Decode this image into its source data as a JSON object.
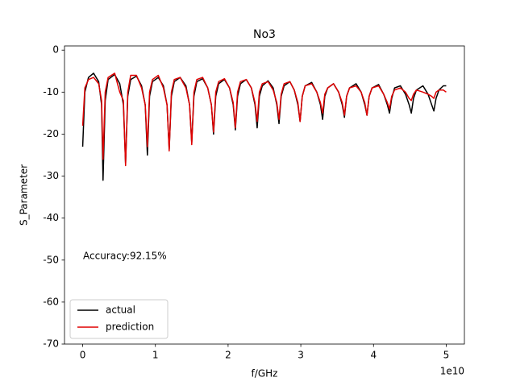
{
  "chart_data": {
    "type": "line",
    "title": "No3",
    "xlabel": "f/GHz",
    "ylabel": "S_Parameter",
    "x_offset_label": "1e10",
    "annotation": "Accuracy:92.15%",
    "x": [
      0,
      0.03,
      0.08,
      0.15,
      0.22,
      0.26,
      0.28,
      0.31,
      0.35,
      0.44,
      0.51,
      0.56,
      0.59,
      0.62,
      0.66,
      0.74,
      0.81,
      0.86,
      0.89,
      0.92,
      0.96,
      1.04,
      1.11,
      1.16,
      1.19,
      1.22,
      1.26,
      1.34,
      1.42,
      1.47,
      1.5,
      1.53,
      1.57,
      1.65,
      1.72,
      1.77,
      1.8,
      1.83,
      1.87,
      1.95,
      2.02,
      2.07,
      2.1,
      2.13,
      2.17,
      2.25,
      2.32,
      2.37,
      2.4,
      2.43,
      2.47,
      2.55,
      2.62,
      2.67,
      2.7,
      2.73,
      2.77,
      2.85,
      2.91,
      2.96,
      2.99,
      3.02,
      3.06,
      3.15,
      3.22,
      3.27,
      3.3,
      3.33,
      3.37,
      3.45,
      3.52,
      3.57,
      3.6,
      3.63,
      3.67,
      3.76,
      3.83,
      3.88,
      3.91,
      3.94,
      3.98,
      4.07,
      4.14,
      4.19,
      4.22,
      4.25,
      4.29,
      4.37,
      4.44,
      4.49,
      4.52,
      4.55,
      4.59,
      4.68,
      4.75,
      4.8,
      4.83,
      4.86,
      4.9,
      4.96,
      5.0
    ],
    "series": [
      {
        "name": "actual",
        "color": "#000000",
        "values": [
          -23,
          -10,
          -6.5,
          -5.5,
          -7.5,
          -13,
          -31,
          -12,
          -7,
          -5.8,
          -8,
          -13,
          -27,
          -11,
          -7,
          -6.2,
          -8.5,
          -13,
          -25,
          -11,
          -7.5,
          -6.5,
          -8.5,
          -13,
          -23.5,
          -11,
          -7.5,
          -6.5,
          -8.5,
          -13,
          -22,
          -11,
          -7.5,
          -6.8,
          -9,
          -13,
          -20,
          -11,
          -8,
          -7,
          -9,
          -13,
          -19,
          -11,
          -8,
          -7,
          -9,
          -13,
          -18.5,
          -11,
          -8.5,
          -7.3,
          -9,
          -13,
          -17.5,
          -11,
          -8.5,
          -7.5,
          -9.5,
          -13,
          -17,
          -11,
          -8.5,
          -7.7,
          -10,
          -13,
          -16.5,
          -11,
          -9,
          -8,
          -10,
          -13,
          -16,
          -11,
          -9,
          -8,
          -10,
          -13,
          -15.5,
          -11,
          -9,
          -8.2,
          -10.5,
          -13,
          -15,
          -11.5,
          -9,
          -8.5,
          -10.5,
          -13,
          -15,
          -11.5,
          -9.5,
          -8.5,
          -10.5,
          -13,
          -14.5,
          -11.5,
          -9.5,
          -8.5,
          -8.5
        ]
      },
      {
        "name": "prediction",
        "color": "#e00000",
        "values": [
          -18,
          -9,
          -7,
          -6.5,
          -8,
          -12,
          -26,
          -10,
          -6.5,
          -5.5,
          -10,
          -12,
          -27.5,
          -10,
          -6,
          -6,
          -9,
          -13,
          -23,
          -10,
          -7,
          -6,
          -9,
          -13,
          -24,
          -10,
          -7,
          -6.5,
          -9,
          -13,
          -22.5,
          -10,
          -7,
          -6.5,
          -9,
          -13,
          -19.5,
          -10,
          -7.5,
          -6.8,
          -9,
          -12.5,
          -18.5,
          -10,
          -7.5,
          -7,
          -9,
          -12.5,
          -17,
          -10,
          -8,
          -7.5,
          -9.5,
          -12.5,
          -16.5,
          -10.5,
          -8,
          -7.5,
          -9.5,
          -12.5,
          -17,
          -11,
          -8.5,
          -8,
          -10,
          -12.5,
          -15,
          -10.5,
          -9,
          -8,
          -10,
          -12.5,
          -15.5,
          -11,
          -9,
          -8.5,
          -10,
          -12.5,
          -15.5,
          -11,
          -9,
          -8.5,
          -10.5,
          -12.5,
          -14,
          -11,
          -9.5,
          -9,
          -10,
          -11.5,
          -12,
          -10.5,
          -9.5,
          -10,
          -10.5,
          -11,
          -11.5,
          -10,
          -9.5,
          -9.5,
          -10
        ]
      }
    ],
    "xlim": [
      -0.25,
      5.25
    ],
    "ylim": [
      -70,
      1
    ],
    "xticks": [
      0,
      1,
      2,
      3,
      4,
      5
    ],
    "yticks": [
      0,
      -10,
      -20,
      -30,
      -40,
      -50,
      -60,
      -70
    ],
    "grid": false,
    "legend": "lower left"
  }
}
